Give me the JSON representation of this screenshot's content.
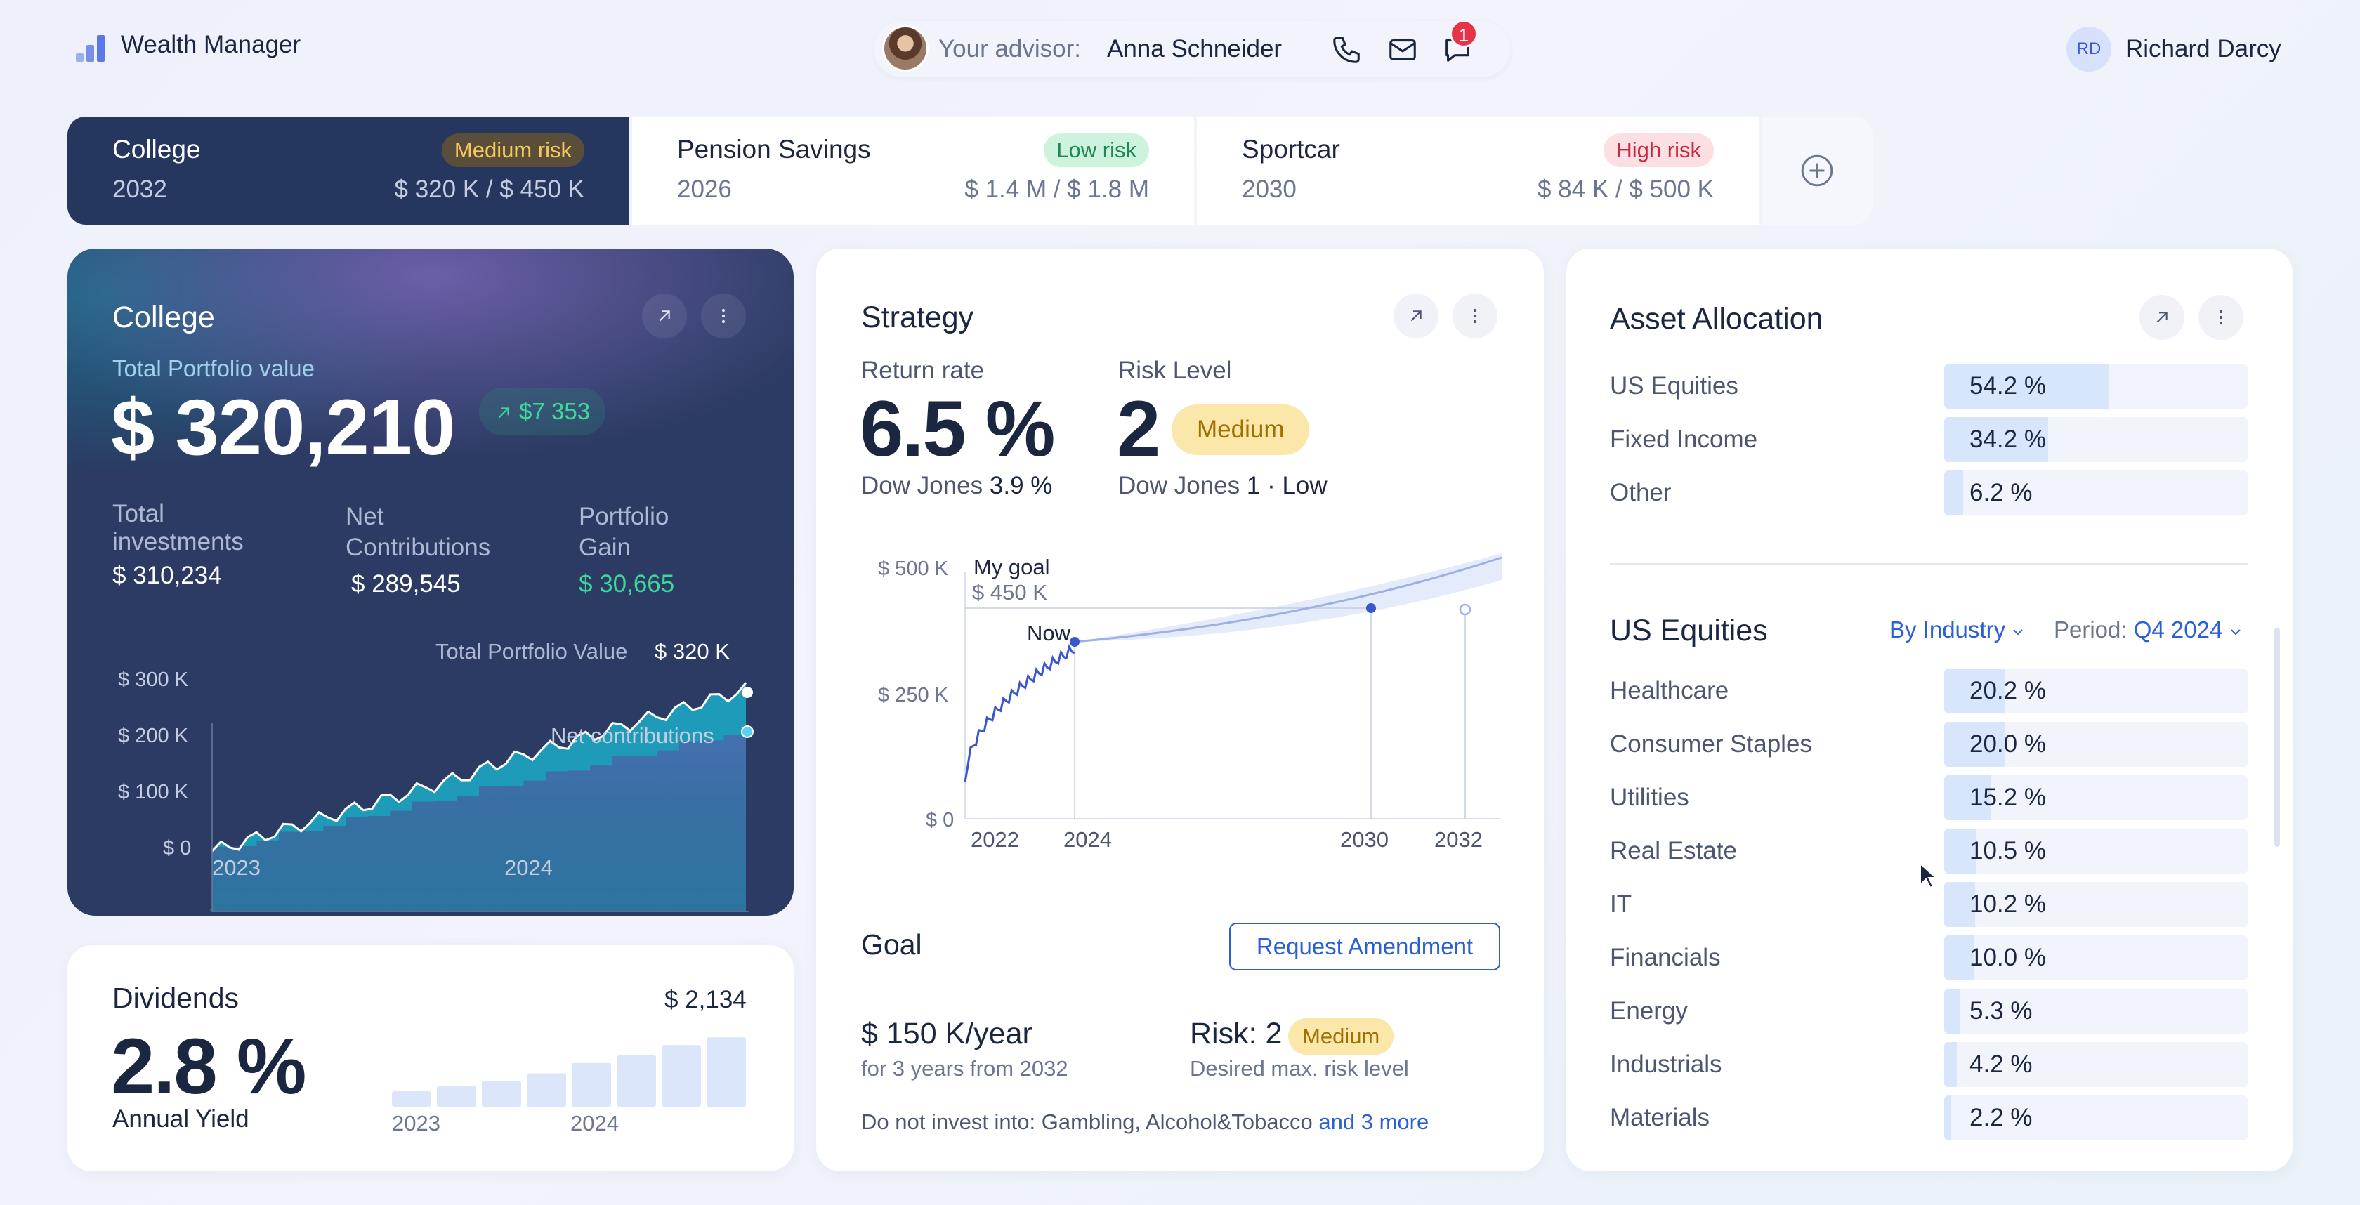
{
  "header": {
    "app_title": "Wealth Manager",
    "advisor_label": "Your advisor:",
    "advisor_name": "Anna Schneider",
    "notification_count": "1",
    "user_initials": "RD",
    "user_name": "Richard Darcy",
    "icons": [
      "phone-icon",
      "mail-icon",
      "chat-icon"
    ]
  },
  "tabs": [
    {
      "name": "College",
      "year": "2032",
      "amount": "$ 320 K / $ 450 K",
      "risk": "Medium risk",
      "risk_level": "medium",
      "active": true
    },
    {
      "name": "Pension Savings",
      "year": "2026",
      "amount": "$ 1.4 M / $ 1.8 M",
      "risk": "Low risk",
      "risk_level": "low",
      "active": false
    },
    {
      "name": "Sportcar",
      "year": "2030",
      "amount": "$ 84 K / $ 500 K",
      "risk": "High risk",
      "risk_level": "high",
      "active": false
    }
  ],
  "college": {
    "title": "College",
    "portfolio_label": "Total Portfolio value",
    "portfolio_value": "$ 320,210",
    "gain_badge": "$7 353",
    "stats": [
      {
        "label": "Total investments",
        "value": "$ 310,234"
      },
      {
        "label": "Net Contributions",
        "value": "$ 289,545"
      },
      {
        "label": "Portfolio Gain",
        "value": "$ 30,665"
      }
    ],
    "chart": {
      "portfolio_annotation_label": "Total Portfolio Value",
      "portfolio_annotation_value": "$ 320 K",
      "contributions_label": "Net contributions",
      "y_ticks": [
        "$ 300 K",
        "$ 200 K",
        "$ 100 K",
        "$ 0"
      ],
      "x_ticks": [
        "2023",
        "2024"
      ]
    }
  },
  "dividends": {
    "title": "Dividends",
    "yield": "2.8 %",
    "yield_label": "Annual Yield",
    "latest_value": "$ 2,134",
    "x_ticks": [
      "2023",
      "2024"
    ],
    "bars": [
      6,
      8,
      10,
      13,
      17,
      20,
      24,
      27,
      35
    ]
  },
  "strategy": {
    "title": "Strategy",
    "return_label": "Return rate",
    "return_value": "6.5 %",
    "return_bench_label": "Dow Jones",
    "return_bench_value": "3.9 %",
    "risk_label": "Risk Level",
    "risk_value": "2",
    "risk_badge": "Medium",
    "risk_bench_label": "Dow Jones",
    "risk_bench_value": "1 · Low",
    "chart": {
      "goal_label": "My goal",
      "goal_value": "$ 450 K",
      "now_label": "Now",
      "y_ticks": [
        "$ 500 K",
        "$ 250 K",
        "$ 0"
      ],
      "x_ticks": [
        "2022",
        "2024",
        "2030",
        "2032"
      ]
    }
  },
  "goal": {
    "title": "Goal",
    "amend_button": "Request Amendment",
    "amount": "$ 150 K/year",
    "amount_note": "for 3 years from 2032",
    "risk_label": "Risk: 2",
    "risk_badge": "Medium",
    "risk_note": "Desired max. risk level",
    "exclusions_text": "Do not invest into: Gambling, Alcohol&Tobacco",
    "exclusions_more": "and 3 more"
  },
  "allocation": {
    "title": "Asset Allocation",
    "rows": [
      {
        "label": "US Equities",
        "value": "54.2 %",
        "pct": 54.2
      },
      {
        "label": "Fixed Income",
        "value": "34.2 %",
        "pct": 34.2
      },
      {
        "label": "Other",
        "value": "6.2 %",
        "pct": 6.2
      }
    ]
  },
  "us_equities": {
    "title": "US Equities",
    "group_by": "By Industry",
    "period_label": "Period:",
    "period_value": "Q4 2024",
    "rows": [
      {
        "label": "Healthcare",
        "value": "20.2 %",
        "pct": 20.2
      },
      {
        "label": "Consumer Staples",
        "value": "20.0 %",
        "pct": 20.0
      },
      {
        "label": "Utilities",
        "value": "15.2 %",
        "pct": 15.2
      },
      {
        "label": "Real Estate",
        "value": "10.5 %",
        "pct": 10.5
      },
      {
        "label": "IT",
        "value": "10.2 %",
        "pct": 10.2
      },
      {
        "label": "Financials",
        "value": "10.0 %",
        "pct": 10.0
      },
      {
        "label": "Energy",
        "value": "5.3 %",
        "pct": 5.3
      },
      {
        "label": "Industrials",
        "value": "4.2 %",
        "pct": 4.2
      },
      {
        "label": "Materials",
        "value": "2.2 %",
        "pct": 2.2
      }
    ]
  }
}
